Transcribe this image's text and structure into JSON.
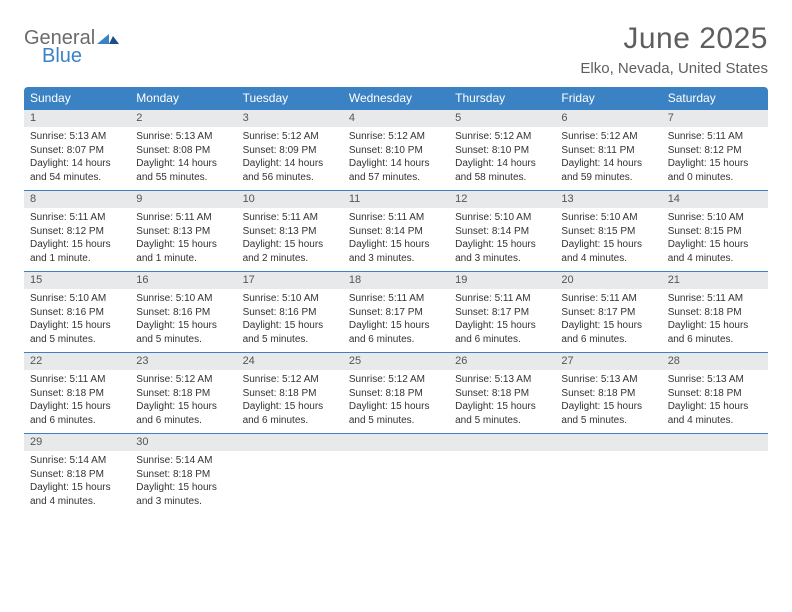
{
  "brand": {
    "word1": "General",
    "word2": "Blue",
    "color_gray": "#6b6b6b",
    "color_blue": "#3b82c4"
  },
  "title": "June 2025",
  "location": "Elko, Nevada, United States",
  "heading_bg": "#3b82c4",
  "heading_fg": "#ffffff",
  "daynum_bg": "#e8e9ea",
  "rule_color": "#3b82c4",
  "day_names": [
    "Sunday",
    "Monday",
    "Tuesday",
    "Wednesday",
    "Thursday",
    "Friday",
    "Saturday"
  ],
  "weeks": [
    [
      {
        "n": "1",
        "sr": "Sunrise: 5:13 AM",
        "ss": "Sunset: 8:07 PM",
        "d1": "Daylight: 14 hours",
        "d2": "and 54 minutes."
      },
      {
        "n": "2",
        "sr": "Sunrise: 5:13 AM",
        "ss": "Sunset: 8:08 PM",
        "d1": "Daylight: 14 hours",
        "d2": "and 55 minutes."
      },
      {
        "n": "3",
        "sr": "Sunrise: 5:12 AM",
        "ss": "Sunset: 8:09 PM",
        "d1": "Daylight: 14 hours",
        "d2": "and 56 minutes."
      },
      {
        "n": "4",
        "sr": "Sunrise: 5:12 AM",
        "ss": "Sunset: 8:10 PM",
        "d1": "Daylight: 14 hours",
        "d2": "and 57 minutes."
      },
      {
        "n": "5",
        "sr": "Sunrise: 5:12 AM",
        "ss": "Sunset: 8:10 PM",
        "d1": "Daylight: 14 hours",
        "d2": "and 58 minutes."
      },
      {
        "n": "6",
        "sr": "Sunrise: 5:12 AM",
        "ss": "Sunset: 8:11 PM",
        "d1": "Daylight: 14 hours",
        "d2": "and 59 minutes."
      },
      {
        "n": "7",
        "sr": "Sunrise: 5:11 AM",
        "ss": "Sunset: 8:12 PM",
        "d1": "Daylight: 15 hours",
        "d2": "and 0 minutes."
      }
    ],
    [
      {
        "n": "8",
        "sr": "Sunrise: 5:11 AM",
        "ss": "Sunset: 8:12 PM",
        "d1": "Daylight: 15 hours",
        "d2": "and 1 minute."
      },
      {
        "n": "9",
        "sr": "Sunrise: 5:11 AM",
        "ss": "Sunset: 8:13 PM",
        "d1": "Daylight: 15 hours",
        "d2": "and 1 minute."
      },
      {
        "n": "10",
        "sr": "Sunrise: 5:11 AM",
        "ss": "Sunset: 8:13 PM",
        "d1": "Daylight: 15 hours",
        "d2": "and 2 minutes."
      },
      {
        "n": "11",
        "sr": "Sunrise: 5:11 AM",
        "ss": "Sunset: 8:14 PM",
        "d1": "Daylight: 15 hours",
        "d2": "and 3 minutes."
      },
      {
        "n": "12",
        "sr": "Sunrise: 5:10 AM",
        "ss": "Sunset: 8:14 PM",
        "d1": "Daylight: 15 hours",
        "d2": "and 3 minutes."
      },
      {
        "n": "13",
        "sr": "Sunrise: 5:10 AM",
        "ss": "Sunset: 8:15 PM",
        "d1": "Daylight: 15 hours",
        "d2": "and 4 minutes."
      },
      {
        "n": "14",
        "sr": "Sunrise: 5:10 AM",
        "ss": "Sunset: 8:15 PM",
        "d1": "Daylight: 15 hours",
        "d2": "and 4 minutes."
      }
    ],
    [
      {
        "n": "15",
        "sr": "Sunrise: 5:10 AM",
        "ss": "Sunset: 8:16 PM",
        "d1": "Daylight: 15 hours",
        "d2": "and 5 minutes."
      },
      {
        "n": "16",
        "sr": "Sunrise: 5:10 AM",
        "ss": "Sunset: 8:16 PM",
        "d1": "Daylight: 15 hours",
        "d2": "and 5 minutes."
      },
      {
        "n": "17",
        "sr": "Sunrise: 5:10 AM",
        "ss": "Sunset: 8:16 PM",
        "d1": "Daylight: 15 hours",
        "d2": "and 5 minutes."
      },
      {
        "n": "18",
        "sr": "Sunrise: 5:11 AM",
        "ss": "Sunset: 8:17 PM",
        "d1": "Daylight: 15 hours",
        "d2": "and 6 minutes."
      },
      {
        "n": "19",
        "sr": "Sunrise: 5:11 AM",
        "ss": "Sunset: 8:17 PM",
        "d1": "Daylight: 15 hours",
        "d2": "and 6 minutes."
      },
      {
        "n": "20",
        "sr": "Sunrise: 5:11 AM",
        "ss": "Sunset: 8:17 PM",
        "d1": "Daylight: 15 hours",
        "d2": "and 6 minutes."
      },
      {
        "n": "21",
        "sr": "Sunrise: 5:11 AM",
        "ss": "Sunset: 8:18 PM",
        "d1": "Daylight: 15 hours",
        "d2": "and 6 minutes."
      }
    ],
    [
      {
        "n": "22",
        "sr": "Sunrise: 5:11 AM",
        "ss": "Sunset: 8:18 PM",
        "d1": "Daylight: 15 hours",
        "d2": "and 6 minutes."
      },
      {
        "n": "23",
        "sr": "Sunrise: 5:12 AM",
        "ss": "Sunset: 8:18 PM",
        "d1": "Daylight: 15 hours",
        "d2": "and 6 minutes."
      },
      {
        "n": "24",
        "sr": "Sunrise: 5:12 AM",
        "ss": "Sunset: 8:18 PM",
        "d1": "Daylight: 15 hours",
        "d2": "and 6 minutes."
      },
      {
        "n": "25",
        "sr": "Sunrise: 5:12 AM",
        "ss": "Sunset: 8:18 PM",
        "d1": "Daylight: 15 hours",
        "d2": "and 5 minutes."
      },
      {
        "n": "26",
        "sr": "Sunrise: 5:13 AM",
        "ss": "Sunset: 8:18 PM",
        "d1": "Daylight: 15 hours",
        "d2": "and 5 minutes."
      },
      {
        "n": "27",
        "sr": "Sunrise: 5:13 AM",
        "ss": "Sunset: 8:18 PM",
        "d1": "Daylight: 15 hours",
        "d2": "and 5 minutes."
      },
      {
        "n": "28",
        "sr": "Sunrise: 5:13 AM",
        "ss": "Sunset: 8:18 PM",
        "d1": "Daylight: 15 hours",
        "d2": "and 4 minutes."
      }
    ],
    [
      {
        "n": "29",
        "sr": "Sunrise: 5:14 AM",
        "ss": "Sunset: 8:18 PM",
        "d1": "Daylight: 15 hours",
        "d2": "and 4 minutes."
      },
      {
        "n": "30",
        "sr": "Sunrise: 5:14 AM",
        "ss": "Sunset: 8:18 PM",
        "d1": "Daylight: 15 hours",
        "d2": "and 3 minutes."
      },
      null,
      null,
      null,
      null,
      null
    ]
  ]
}
